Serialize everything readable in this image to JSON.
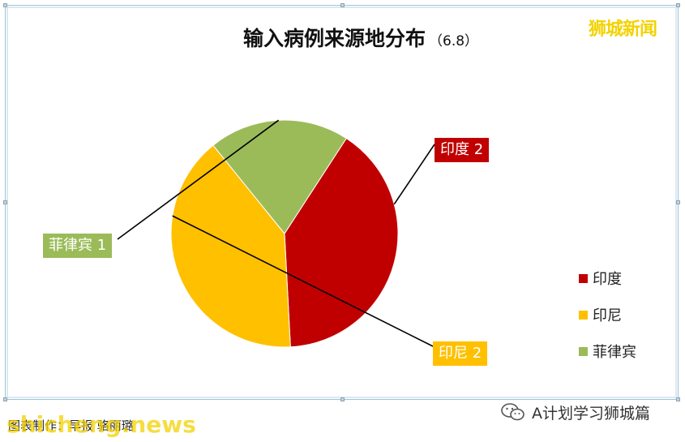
{
  "header": {
    "title": "输入病例来源地分布",
    "subtitle": "（6.8）",
    "watermark_top": "狮城新闻"
  },
  "chart_data": {
    "type": "pie",
    "title": "输入病例来源地分布（6.8）",
    "slices": [
      {
        "label": "印度",
        "value": 2,
        "color": "#c00000",
        "data_label": "印度 2"
      },
      {
        "label": "印尼",
        "value": 2,
        "color": "#ffc000",
        "data_label": "印尼 2"
      },
      {
        "label": "菲律宾",
        "value": 1,
        "color": "#9bbb59",
        "data_label": "菲律宾 1"
      }
    ],
    "legend_position": "right"
  },
  "legend": {
    "items": [
      "印度",
      "印尼",
      "菲律宾"
    ]
  },
  "footer": {
    "caption": "图表制作：早报 骆丽璐",
    "watermark_bottom": "shicheng.news",
    "source_tag": "A计划学习狮城篇",
    "source_icon": "wechat-icon"
  }
}
